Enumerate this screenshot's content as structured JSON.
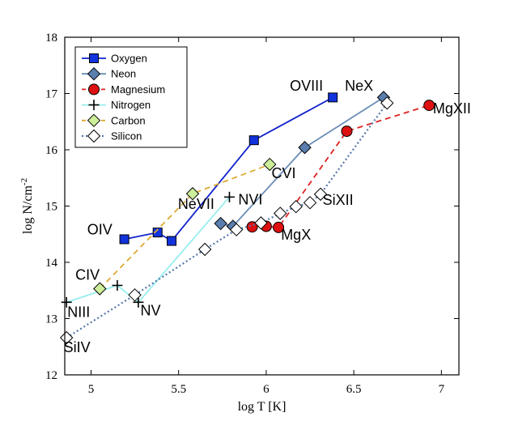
{
  "chart_data": {
    "type": "line",
    "xlabel": "log T [K]",
    "ylabel": "log N/cm",
    "ylabel_exponent": "-2",
    "xlim": [
      4.85,
      7.1
    ],
    "ylim": [
      12,
      18
    ],
    "xticks": [
      5,
      5.5,
      6,
      6.5,
      7
    ],
    "yticks": [
      12,
      13,
      14,
      15,
      16,
      17,
      18
    ],
    "xtick_labels": [
      "5",
      "5.5",
      "6",
      "6.5",
      "7"
    ],
    "ytick_labels": [
      "12",
      "13",
      "14",
      "15",
      "16",
      "17",
      "18"
    ],
    "legend_position": "top-left",
    "series": [
      {
        "name": "Oxygen",
        "color": "#1122cc",
        "marker": "square",
        "marker_fill": "#1133dd",
        "line": "solid",
        "x": [
          5.19,
          5.38,
          5.46,
          5.93,
          6.38
        ],
        "y": [
          14.41,
          14.53,
          14.38,
          16.17,
          16.93
        ]
      },
      {
        "name": "Neon",
        "color": "#6b8db5",
        "marker": "diamond",
        "marker_fill": "#5a7fae",
        "line": "solid",
        "x": [
          5.74,
          5.81,
          6.22,
          6.67
        ],
        "y": [
          14.69,
          14.64,
          16.04,
          16.93
        ]
      },
      {
        "name": "Magnesium",
        "color": "#dd2222",
        "marker": "circle",
        "marker_fill": "#dd1111",
        "line": "dashed",
        "x": [
          5.92,
          6.0,
          6.07,
          6.46,
          6.93
        ],
        "y": [
          14.63,
          14.64,
          14.62,
          16.33,
          16.79
        ]
      },
      {
        "name": "Nitrogen",
        "color": "#99eeee",
        "marker": "plus",
        "marker_fill": "#000000",
        "line": "solid",
        "x": [
          4.86,
          5.15,
          5.27,
          5.79
        ],
        "y": [
          13.29,
          13.59,
          13.29,
          15.16
        ]
      },
      {
        "name": "Carbon",
        "color": "#ddaa33",
        "marker": "diamond",
        "marker_fill": "#ccee99",
        "line": "dashed",
        "x": [
          5.05,
          5.58,
          6.02
        ],
        "y": [
          13.53,
          15.22,
          15.74
        ]
      },
      {
        "name": "Silicon",
        "color": "#5577aa",
        "marker": "diamond",
        "marker_fill": "#ffffff",
        "line": "dotted",
        "x": [
          4.86,
          5.25,
          5.65,
          5.83,
          5.97,
          6.08,
          6.17,
          6.25,
          6.31,
          6.69
        ],
        "y": [
          12.66,
          13.42,
          14.23,
          14.58,
          14.7,
          14.87,
          14.99,
          15.06,
          15.21,
          16.83
        ]
      }
    ],
    "annotations": [
      {
        "text": "OVIII",
        "x": 6.23,
        "y": 17.05
      },
      {
        "text": "NeX",
        "x": 6.53,
        "y": 17.05
      },
      {
        "text": "MgXII",
        "x": 7.06,
        "y": 16.65
      },
      {
        "text": "CVI",
        "x": 6.1,
        "y": 15.5
      },
      {
        "text": "NeVII",
        "x": 5.6,
        "y": 14.95
      },
      {
        "text": "NVI",
        "x": 5.91,
        "y": 15.03
      },
      {
        "text": "SiXII",
        "x": 6.41,
        "y": 15.02
      },
      {
        "text": "OIV",
        "x": 5.05,
        "y": 14.5
      },
      {
        "text": "MgX",
        "x": 6.17,
        "y": 14.4
      },
      {
        "text": "CIV",
        "x": 4.98,
        "y": 13.69
      },
      {
        "text": "NIII",
        "x": 4.93,
        "y": 13.03
      },
      {
        "text": "NV",
        "x": 5.34,
        "y": 13.06
      },
      {
        "text": "SiIV",
        "x": 4.92,
        "y": 12.4
      }
    ]
  }
}
